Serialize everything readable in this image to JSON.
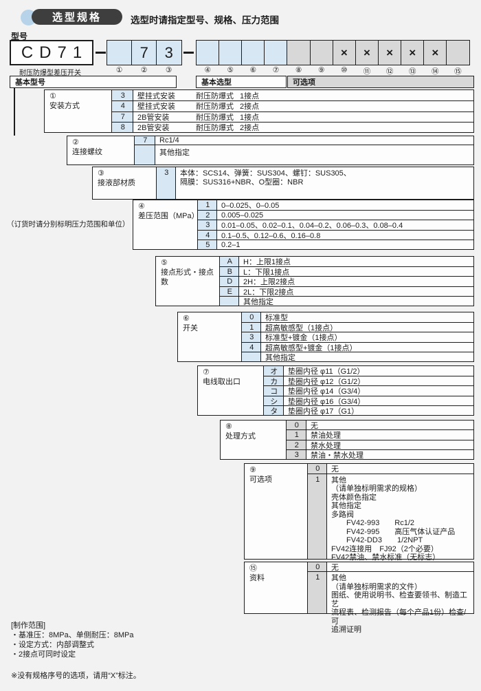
{
  "header": {
    "badge": "选型规格",
    "subtitle": "选型时请指定型号、规格、压力范围"
  },
  "model": {
    "label": "型号",
    "prefix": "CD71",
    "caption": "耐压防爆型差压开关",
    "group1": [
      {
        "num": "①",
        "value": "",
        "style": "blue"
      },
      {
        "num": "②",
        "value": "7",
        "style": "blue"
      },
      {
        "num": "③",
        "value": "3",
        "style": "blue"
      }
    ],
    "group2": [
      {
        "num": "④",
        "value": "",
        "style": "blue"
      },
      {
        "num": "⑤",
        "value": "",
        "style": "blue"
      },
      {
        "num": "⑥",
        "value": "",
        "style": "blue"
      },
      {
        "num": "⑦",
        "value": "",
        "style": "blue"
      },
      {
        "num": "⑧",
        "value": "",
        "style": "gray"
      },
      {
        "num": "⑨",
        "value": "",
        "style": "gray"
      },
      {
        "num": "⑩",
        "value": "×",
        "style": "gray"
      },
      {
        "num": "⑪",
        "value": "×",
        "style": "gray"
      },
      {
        "num": "⑫",
        "value": "×",
        "style": "gray"
      },
      {
        "num": "⑬",
        "value": "×",
        "style": "gray"
      },
      {
        "num": "⑭",
        "value": "×",
        "style": "gray"
      },
      {
        "num": "⑮",
        "value": "",
        "style": "gray"
      }
    ]
  },
  "headers": {
    "basic_model": "基本型号",
    "basic_selection": "基本选型",
    "options": "可选项"
  },
  "order_note": "（订货时请分别标明压力范围和单位）",
  "sections": [
    {
      "num": "①",
      "name": "安装方式",
      "style": "blue",
      "rows": [
        {
          "code": "3",
          "cols": [
            "壁挂式安装",
            "耐压防爆式",
            "1接点"
          ]
        },
        {
          "code": "4",
          "cols": [
            "壁挂式安装",
            "耐压防爆式",
            "2接点"
          ]
        },
        {
          "code": "7",
          "cols": [
            "2B管安装",
            "耐压防爆式",
            "1接点"
          ]
        },
        {
          "code": "8",
          "cols": [
            "2B管安装",
            "耐压防爆式",
            "2接点"
          ]
        }
      ]
    },
    {
      "num": "②",
      "name": "连接螺纹",
      "style": "blue",
      "rows": [
        {
          "code": "7",
          "desc": "Rc1/4"
        },
        {
          "code": "",
          "desc": "其他指定",
          "top_align": true
        }
      ]
    },
    {
      "num": "③",
      "name": "接液部材质",
      "style": "blue",
      "rows": [
        {
          "code": "3",
          "top_align": true,
          "lines": [
            "本体：SCS14、弹簧：SUS304、螺钉：SUS305、",
            "隔膜：SUS316+NBR、O型圈：NBR"
          ]
        }
      ]
    },
    {
      "num": "④",
      "name": "差压范围（MPa）",
      "style": "blue",
      "rows": [
        {
          "code": "1",
          "desc": "0–0.025、0–0.05"
        },
        {
          "code": "2",
          "desc": "0.005–0.025"
        },
        {
          "code": "3",
          "desc": "0.01–0.05、0.02–0.1、0.04–0.2、0.06–0.3、0.08–0.4"
        },
        {
          "code": "4",
          "desc": "0.1–0.5、0.12–0.6、0.16–0.8"
        },
        {
          "code": "5",
          "desc": "0.2–1"
        }
      ]
    },
    {
      "num": "⑤",
      "name": "接点形式・接点数",
      "style": "blue",
      "rows": [
        {
          "code": "A",
          "desc": "H：上限1接点"
        },
        {
          "code": "B",
          "desc": "L：下限1接点"
        },
        {
          "code": "D",
          "desc": "2H：上限2接点"
        },
        {
          "code": "E",
          "desc": "2L：下限2接点"
        },
        {
          "code": "",
          "desc": "其他指定"
        }
      ]
    },
    {
      "num": "⑥",
      "name": "开关",
      "style": "blue",
      "rows": [
        {
          "code": "0",
          "desc": "标准型"
        },
        {
          "code": "1",
          "desc": "超高敏感型（1接点）"
        },
        {
          "code": "3",
          "desc": "标准型+镀金（1接点）"
        },
        {
          "code": "4",
          "desc": "超高敏感型+镀金（1接点）"
        },
        {
          "code": "",
          "desc": "其他指定"
        }
      ]
    },
    {
      "num": "⑦",
      "name": "电线取出口",
      "style": "blue",
      "rows": [
        {
          "code": "オ",
          "desc": "垫圈内径 φ11（G1/2）"
        },
        {
          "code": "カ",
          "desc": "垫圈内径 φ12（G1/2）"
        },
        {
          "code": "コ",
          "desc": "垫圈内径 φ14（G3/4）"
        },
        {
          "code": "シ",
          "desc": "垫圈内径 φ16（G3/4）"
        },
        {
          "code": "タ",
          "desc": "垫圈内径 φ17（G1）"
        }
      ]
    },
    {
      "num": "⑧",
      "name": "处理方式",
      "style": "gray",
      "rows": [
        {
          "code": "0",
          "desc": "无"
        },
        {
          "code": "1",
          "desc": "禁油处理"
        },
        {
          "code": "2",
          "desc": "禁水处理"
        },
        {
          "code": "3",
          "desc": "禁油・禁水处理"
        }
      ]
    },
    {
      "num": "⑨",
      "name": "可选项",
      "style": "gray",
      "rows": [
        {
          "code": "0",
          "desc": "无"
        },
        {
          "code": "1",
          "top_align": true,
          "lines": [
            "其他",
            "（请单独标明需求的规格）",
            "壳体颜色指定",
            "其他指定",
            "多路阀",
            "　　FV42-993　　Rc1/2",
            "　　FV42-995　　高压气体认证产品",
            "　　FV42-DD3　　1/2NPT",
            "FV42连接用　FJ92（2个必要）",
            "FV42禁油、禁水标准（无标志）"
          ]
        }
      ]
    },
    {
      "num": "⑮",
      "name": "资料",
      "style": "gray",
      "rows": [
        {
          "code": "0",
          "desc": "无"
        },
        {
          "code": "1",
          "top_align": true,
          "lines": [
            "其他",
            "（请单独标明需求的文件）",
            "图纸、使用说明书、检查要领书、制造工艺",
            "流程表、检测报告（每个产品1份）检查/可",
            "追溯证明"
          ]
        }
      ]
    }
  ],
  "footer": {
    "title": "[制作范围]",
    "items": [
      "・基准压：8MPa、单侧耐压：8MPa",
      "・设定方式：内部调整式",
      "・2接点可同时设定"
    ],
    "note": "※没有规格序号的选项，请用“X”标注。"
  }
}
